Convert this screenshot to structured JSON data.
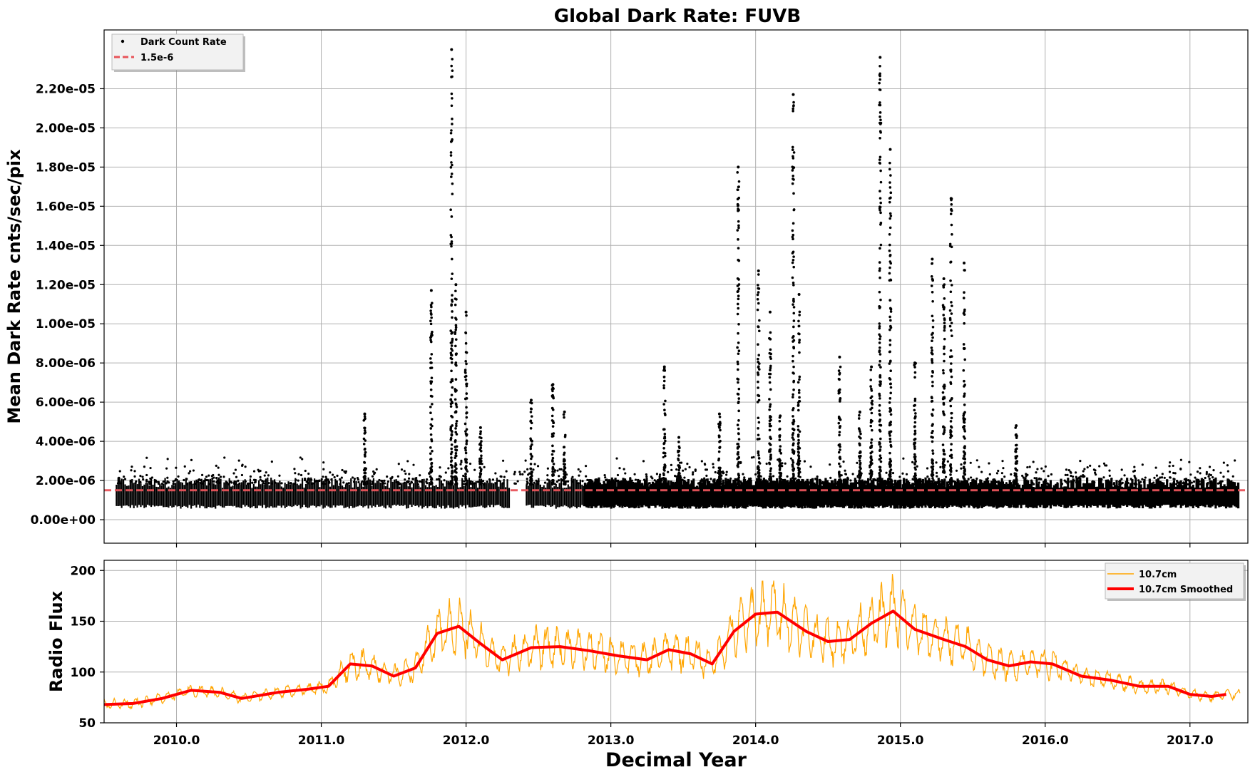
{
  "chart_data": [
    {
      "type": "scatter",
      "title": "Global Dark Rate: FUVB",
      "ylabel": "Mean Dark Rate cnts/sec/pix",
      "xlabel": "",
      "xlim": [
        2009.5,
        2017.4
      ],
      "ylim": [
        -1.2e-06,
        2.5e-05
      ],
      "yticks": [
        0,
        2e-06,
        4e-06,
        6e-06,
        8e-06,
        1e-05,
        1.2e-05,
        1.4e-05,
        1.6e-05,
        1.8e-05,
        2e-05,
        2.2e-05
      ],
      "ytick_labels": [
        "0.00e+00",
        "2.00e-06",
        "4.00e-06",
        "6.00e-06",
        "8.00e-06",
        "1.00e-05",
        "1.20e-05",
        "1.40e-05",
        "1.60e-05",
        "1.80e-05",
        "2.00e-05",
        "2.20e-05"
      ],
      "grid": true,
      "legend_position": "top-left",
      "series": [
        {
          "name": "Dark Count Rate",
          "color": "#000000",
          "marker": "dot",
          "baseline_band": {
            "x": [
              2009.58,
              2017.33
            ],
            "y_low": 7e-07,
            "y_high": 1.8e-06
          },
          "spikes": [
            {
              "x": 2011.3,
              "y": 5.4e-06
            },
            {
              "x": 2011.76,
              "y": 1.17e-05
            },
            {
              "x": 2011.9,
              "y": 2.4e-05
            },
            {
              "x": 2011.93,
              "y": 1.2e-05
            },
            {
              "x": 2012.0,
              "y": 1.06e-05
            },
            {
              "x": 2012.1,
              "y": 4.7e-06
            },
            {
              "x": 2012.45,
              "y": 6.1e-06
            },
            {
              "x": 2012.6,
              "y": 6.9e-06
            },
            {
              "x": 2012.68,
              "y": 5.5e-06
            },
            {
              "x": 2013.37,
              "y": 7.8e-06
            },
            {
              "x": 2013.47,
              "y": 4.2e-06
            },
            {
              "x": 2013.75,
              "y": 5.4e-06
            },
            {
              "x": 2013.88,
              "y": 1.8e-05
            },
            {
              "x": 2014.02,
              "y": 1.27e-05
            },
            {
              "x": 2014.1,
              "y": 1.06e-05
            },
            {
              "x": 2014.17,
              "y": 5.3e-06
            },
            {
              "x": 2014.26,
              "y": 2.17e-05
            },
            {
              "x": 2014.3,
              "y": 1.15e-05
            },
            {
              "x": 2014.58,
              "y": 8.3e-06
            },
            {
              "x": 2014.72,
              "y": 5.5e-06
            },
            {
              "x": 2014.8,
              "y": 7.8e-06
            },
            {
              "x": 2014.86,
              "y": 2.36e-05
            },
            {
              "x": 2014.93,
              "y": 1.89e-05
            },
            {
              "x": 2015.1,
              "y": 8e-06
            },
            {
              "x": 2015.22,
              "y": 1.33e-05
            },
            {
              "x": 2015.3,
              "y": 1.23e-05
            },
            {
              "x": 2015.35,
              "y": 1.64e-05
            },
            {
              "x": 2015.44,
              "y": 1.31e-05
            },
            {
              "x": 2015.8,
              "y": 4.8e-06
            }
          ]
        },
        {
          "name": "1.5e-6",
          "color": "#e8545a",
          "style": "dashed",
          "y": 1.5e-06
        }
      ]
    },
    {
      "type": "line",
      "ylabel": "Radio Flux",
      "xlabel": "Decimal Year",
      "xlim": [
        2009.5,
        2017.4
      ],
      "ylim": [
        50,
        210
      ],
      "xticks": [
        2010,
        2011,
        2012,
        2013,
        2014,
        2015,
        2016,
        2017
      ],
      "xtick_labels": [
        "2010.0",
        "2011.0",
        "2012.0",
        "2013.0",
        "2014.0",
        "2015.0",
        "2016.0",
        "2017.0"
      ],
      "yticks": [
        50,
        100,
        150,
        200
      ],
      "ytick_labels": [
        "50",
        "100",
        "150",
        "200"
      ],
      "grid": true,
      "legend_position": "top-right",
      "series": [
        {
          "name": "10.7cm",
          "color": "#ffa500"
        },
        {
          "name": "10.7cm Smoothed",
          "color": "#ff0000",
          "x": [
            2009.5,
            2009.7,
            2009.9,
            2010.1,
            2010.3,
            2010.45,
            2010.7,
            2010.9,
            2011.05,
            2011.2,
            2011.35,
            2011.5,
            2011.65,
            2011.8,
            2011.95,
            2012.1,
            2012.25,
            2012.45,
            2012.65,
            2012.85,
            2013.05,
            2013.25,
            2013.4,
            2013.55,
            2013.7,
            2013.85,
            2014.0,
            2014.15,
            2014.35,
            2014.5,
            2014.65,
            2014.8,
            2014.95,
            2015.1,
            2015.3,
            2015.45,
            2015.6,
            2015.75,
            2015.9,
            2016.05,
            2016.25,
            2016.45,
            2016.65,
            2016.85,
            2017.0,
            2017.15,
            2017.25
          ],
          "y": [
            68,
            69,
            74,
            82,
            80,
            74,
            80,
            83,
            86,
            108,
            106,
            96,
            104,
            138,
            145,
            128,
            112,
            124,
            125,
            121,
            116,
            112,
            122,
            118,
            108,
            140,
            157,
            159,
            140,
            130,
            132,
            148,
            160,
            142,
            132,
            125,
            112,
            106,
            110,
            108,
            96,
            92,
            86,
            86,
            78,
            76,
            78
          ]
        }
      ]
    }
  ],
  "labels": {
    "title": "Global Dark Rate: FUVB",
    "top_ylabel": "Mean Dark Rate cnts/sec/pix",
    "bottom_ylabel": "Radio Flux",
    "xlabel": "Decimal Year",
    "legend_top": [
      "Dark Count Rate",
      "1.5e-6"
    ],
    "legend_bottom": [
      "10.7cm",
      "10.7cm Smoothed"
    ]
  },
  "colors": {
    "points": "#000000",
    "threshold": "#e8545a",
    "flux_raw": "#ffa500",
    "flux_smoothed": "#ff0000",
    "grid": "#b0b0b0"
  }
}
